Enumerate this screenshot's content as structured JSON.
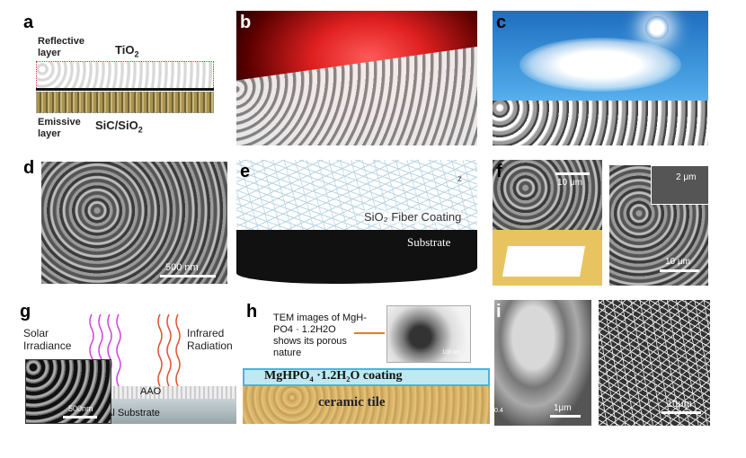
{
  "panels": {
    "a": {
      "letter": "a",
      "reflective_label": "Reflective\nlayer",
      "tio2_label": "TiO",
      "tio2_sub": "2",
      "emissive_label": "Emissive\nlayer",
      "sic_label": "SiC/SiO",
      "sic_sub": "2"
    },
    "b": {
      "letter": "b"
    },
    "c": {
      "letter": "c"
    },
    "d": {
      "letter": "d",
      "scale_label": "500 nm"
    },
    "e": {
      "letter": "e",
      "fiber_label": "SiO₂ Fiber Coating",
      "substrate_label": "Substrate",
      "z_label": "z"
    },
    "f": {
      "letter": "f",
      "scale_left": "10 μm",
      "scale_inset": "2 μm",
      "scale_right": "10 μm"
    },
    "g": {
      "letter": "g",
      "solar_label": "Solar\nIrradiance",
      "ir_label": "Infrared\nRadiation",
      "aao_label": "AAO",
      "al_label": "Al Substrate",
      "scale_label": "500nm"
    },
    "h": {
      "letter": "h",
      "tem_note": "TEM images of MgH-\nPO4 · 1.2H2O\nshows its porous\nnature",
      "coating_label": "MgHPO₄ ·1.2H₂O coating",
      "tile_label": "ceramic tile",
      "tem_scale": "100 nm"
    },
    "i": {
      "letter": "i",
      "scale_left": "1μm",
      "scale_right": "10μm",
      "side_tick": "0.4"
    }
  },
  "colors": {
    "sky": "#2f8fd8",
    "glow": "#e02020",
    "tile": "#d9b56a",
    "coating": "#bfe8f0",
    "wave_solar": "#d040e0",
    "wave_ir": "#e05030",
    "fiber": "#b9d4e2"
  }
}
